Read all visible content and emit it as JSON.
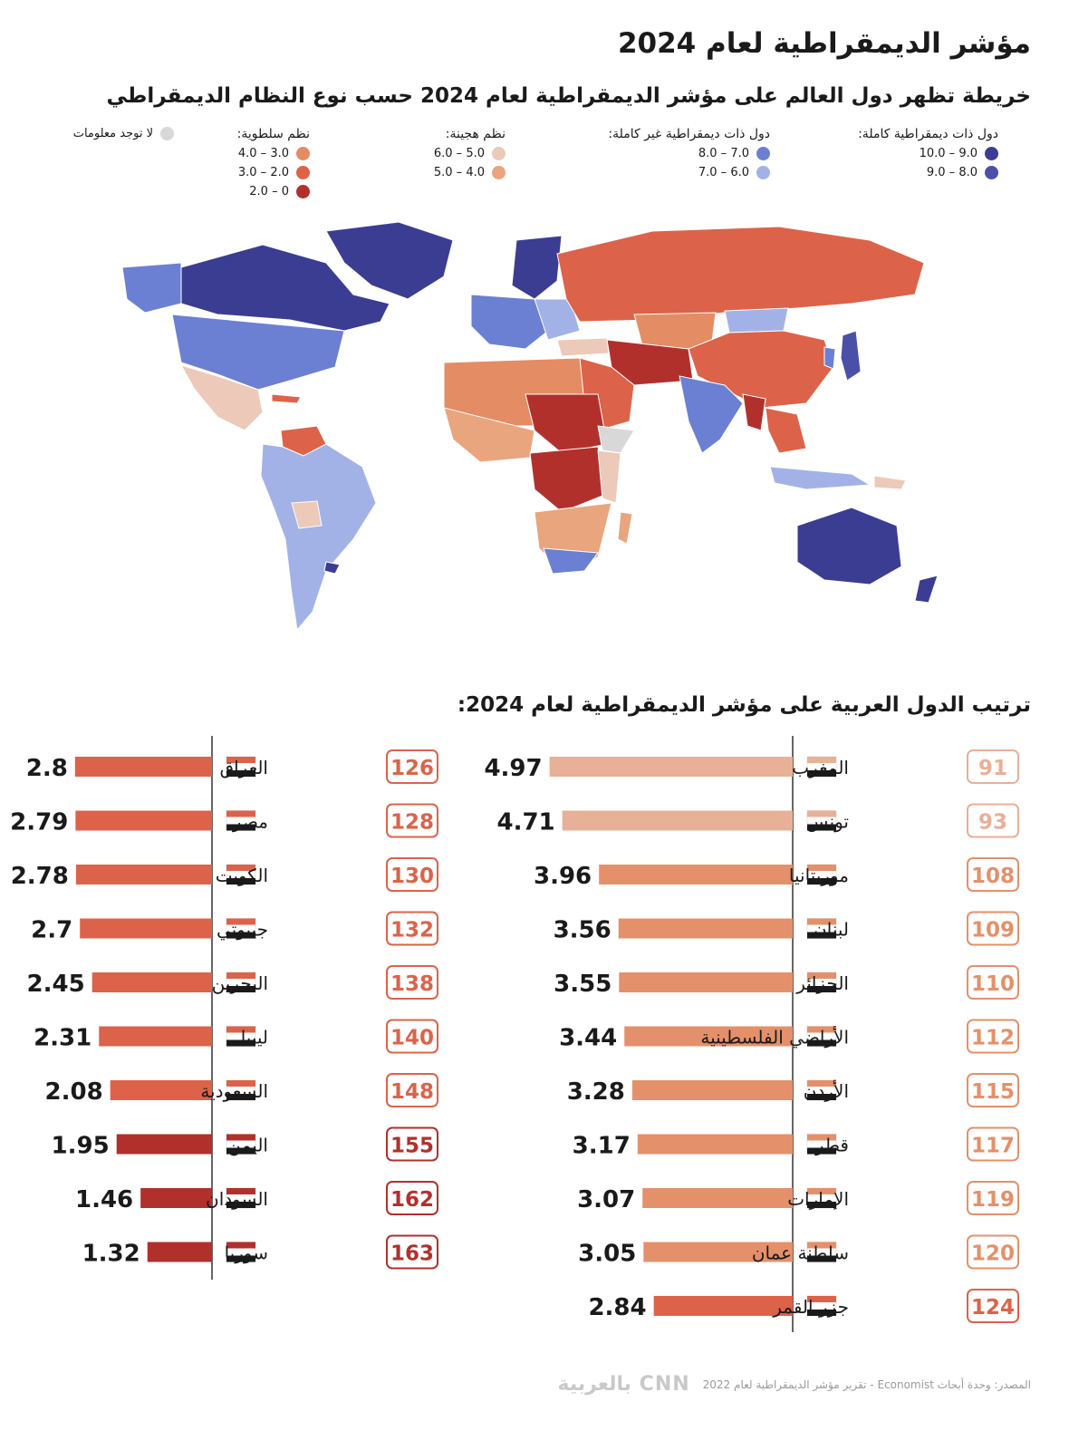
{
  "title": "مؤشر الديمقراطية لعام 2024",
  "subtitle": "خريطة تظهر دول العالم على مؤشر الديمقراطية لعام 2024 حسب نوع النظام الديمقراطي",
  "legend": {
    "full_democracy": {
      "heading": "دول ذات ديمقراطية كاملة:",
      "items": [
        {
          "label": "10.0 – 9.0",
          "color": "#3b3d93"
        },
        {
          "label": "9.0 – 8.0",
          "color": "#4a4fa8"
        }
      ]
    },
    "flawed_democracy": {
      "heading": "دول ذات ديمقراطية غير كاملة:",
      "items": [
        {
          "label": "8.0 – 7.0",
          "color": "#6b80d2"
        },
        {
          "label": "7.0 – 6.0",
          "color": "#a3b2e6"
        }
      ]
    },
    "hybrid": {
      "heading": "نظم هجينة:",
      "items": [
        {
          "label": "6.0 – 5.0",
          "color": "#ecc9b8"
        },
        {
          "label": "5.0 – 4.0",
          "color": "#e8a57e"
        }
      ]
    },
    "authoritarian": {
      "heading": "نظم سلطوية:",
      "items": [
        {
          "label": "4.0 – 3.0",
          "color": "#e48c64"
        },
        {
          "label": "3.0 – 2.0",
          "color": "#dc6349"
        },
        {
          "label": "2.0 – 0",
          "color": "#b2302c"
        }
      ]
    },
    "no_data": {
      "label": "لا توجد معلومات",
      "color": "#d8d8d8"
    }
  },
  "ranking_title": "ترتيب الدول العربية على مؤشر الديمقراطية لعام 2024:",
  "chart_data": {
    "type": "bar",
    "title": "ترتيب الدول العربية على مؤشر الديمقراطية لعام 2024:",
    "xlim": [
      0,
      5
    ],
    "right_column": [
      {
        "country": "المغرب",
        "rank": 91,
        "score": 4.97,
        "flag": "morocco-flag"
      },
      {
        "country": "تونس",
        "rank": 93,
        "score": 4.71,
        "flag": "tunisia-flag"
      },
      {
        "country": "موريتانيا",
        "rank": 108,
        "score": 3.96,
        "flag": "mauritania-flag"
      },
      {
        "country": "لبنان",
        "rank": 109,
        "score": 3.56,
        "flag": "lebanon-flag"
      },
      {
        "country": "الجزائر",
        "rank": 110,
        "score": 3.55,
        "flag": "algeria-flag"
      },
      {
        "country": "الأراضي الفلسطينية",
        "rank": 112,
        "score": 3.44,
        "flag": "palestine-flag"
      },
      {
        "country": "الأردن",
        "rank": 115,
        "score": 3.28,
        "flag": "jordan-flag"
      },
      {
        "country": "قطر",
        "rank": 117,
        "score": 3.17,
        "flag": "qatar-flag"
      },
      {
        "country": "الإمارات",
        "rank": 119,
        "score": 3.07,
        "flag": "uae-flag"
      },
      {
        "country": "سلطنة عمان",
        "rank": 120,
        "score": 3.05,
        "flag": "oman-flag"
      },
      {
        "country": "جزر القمر",
        "rank": 124,
        "score": 2.84,
        "flag": "comoros-flag"
      }
    ],
    "left_column": [
      {
        "country": "العراق",
        "rank": 126,
        "score": 2.8,
        "flag": "iraq-flag"
      },
      {
        "country": "مصر",
        "rank": 128,
        "score": 2.79,
        "flag": "egypt-flag"
      },
      {
        "country": "الكويت",
        "rank": 130,
        "score": 2.78,
        "flag": "kuwait-flag"
      },
      {
        "country": "جيبوتي",
        "rank": 132,
        "score": 2.7,
        "flag": "djibouti-flag"
      },
      {
        "country": "البحرين",
        "rank": 138,
        "score": 2.45,
        "flag": "bahrain-flag"
      },
      {
        "country": "ليبيا",
        "rank": 140,
        "score": 2.31,
        "flag": "libya-flag"
      },
      {
        "country": "السعودية",
        "rank": 148,
        "score": 2.08,
        "flag": "saudi-flag"
      },
      {
        "country": "اليمن",
        "rank": 155,
        "score": 1.95,
        "flag": "yemen-flag"
      },
      {
        "country": "السودان",
        "rank": 162,
        "score": 1.46,
        "flag": "sudan-flag"
      },
      {
        "country": "سوريا",
        "rank": 163,
        "score": 1.32,
        "flag": "syria-flag"
      }
    ]
  },
  "footer": {
    "source": "المصدر: وحدة أبحاث Economist - تقرير مؤشر الديمقراطية لعام 2022",
    "logo": "CNN بالعربية"
  }
}
